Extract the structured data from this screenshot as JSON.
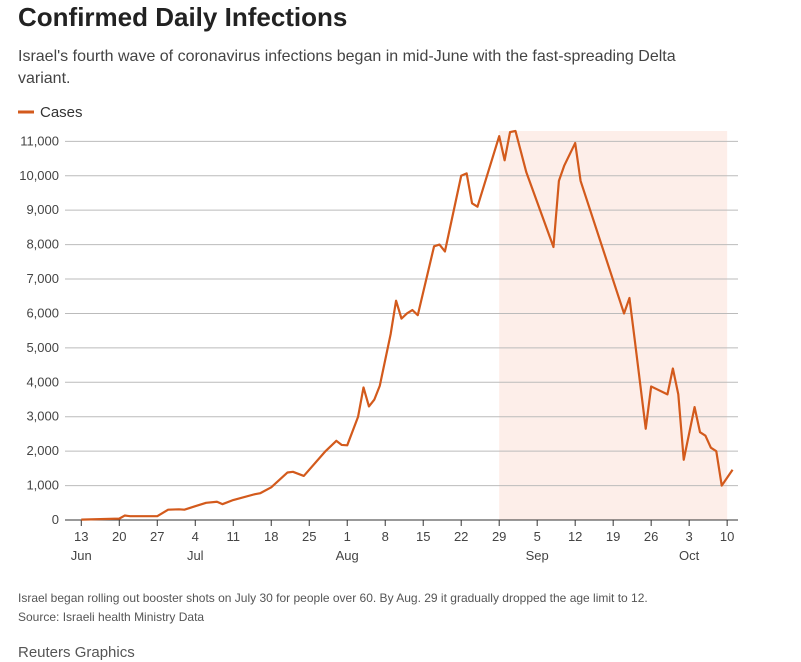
{
  "chart_data": {
    "type": "line",
    "title": "Confirmed Daily Infections",
    "subtitle": [
      "Israel's fourth wave of coronavirus infections began in mid-June with the fast-spreading Delta",
      "variant."
    ],
    "notes": [
      "Israel began rolling out booster shots on July 30 for people over 60. By Aug. 29 it gradually dropped the age limit to 12.",
      "Source: Israeli health Ministry Data"
    ],
    "credit": "Reuters Graphics",
    "legend": "top-left",
    "shade": {
      "from": "Aug 29",
      "to": "Oct 10",
      "color": "#fdeee9"
    },
    "xlim": [
      "Jun 10",
      "Oct 12"
    ],
    "xticks": [
      {
        "value": "Jun 13",
        "label": "13"
      },
      {
        "value": "Jun 20",
        "label": "20"
      },
      {
        "value": "Jun 27",
        "label": "27"
      },
      {
        "value": "Jul 4",
        "label": "4"
      },
      {
        "value": "Jul 11",
        "label": "11"
      },
      {
        "value": "Jul 18",
        "label": "18"
      },
      {
        "value": "Jul 25",
        "label": "25"
      },
      {
        "value": "Aug 1",
        "label": "1"
      },
      {
        "value": "Aug 8",
        "label": "8"
      },
      {
        "value": "Aug 15",
        "label": "15"
      },
      {
        "value": "Aug 22",
        "label": "22"
      },
      {
        "value": "Aug 29",
        "label": "29"
      },
      {
        "value": "Sep 5",
        "label": "5"
      },
      {
        "value": "Sep 12",
        "label": "12"
      },
      {
        "value": "Sep 19",
        "label": "19"
      },
      {
        "value": "Sep 26",
        "label": "26"
      },
      {
        "value": "Oct 3",
        "label": "3"
      },
      {
        "value": "Oct 10",
        "label": "10"
      }
    ],
    "month_labels": [
      {
        "value": "Jun 13",
        "label": "Jun"
      },
      {
        "value": "Jul 4",
        "label": "Jul"
      },
      {
        "value": "Aug 1",
        "label": "Aug"
      },
      {
        "value": "Sep 5",
        "label": "Sep"
      },
      {
        "value": "Oct 3",
        "label": "Oct"
      }
    ],
    "ylim": [
      0,
      11300
    ],
    "yticks": [
      0,
      {
        "value": 1000,
        "label": "1,000"
      },
      {
        "value": 2000,
        "label": "2,000"
      },
      {
        "value": 3000,
        "label": "3,000"
      },
      {
        "value": 4000,
        "label": "4,000"
      },
      {
        "value": 5000,
        "label": "5,000"
      },
      {
        "value": 6000,
        "label": "6,000"
      },
      {
        "value": 7000,
        "label": "7,000"
      },
      {
        "value": 8000,
        "label": "8,000"
      },
      {
        "value": 9000,
        "label": "9,000"
      },
      {
        "value": 10000,
        "label": "10,000"
      },
      {
        "value": 11000,
        "label": "11,000"
      }
    ],
    "grid": true,
    "x": [
      "Jun 13",
      "Jun 20",
      "Jun 21",
      "Jun 22",
      "Jun 27",
      "Jun 29",
      "Jul 1",
      "Jul 2",
      "Jul 4",
      "Jul 6",
      "Jul 8",
      "Jul 9",
      "Jul 11",
      "Jul 15",
      "Jul 16",
      "Jul 18",
      "Jul 21",
      "Jul 22",
      "Jul 24",
      "Jul 28",
      "Jul 30",
      "Jul 31",
      "Aug 1",
      "Aug 3",
      "Aug 4",
      "Aug 5",
      "Aug 6",
      "Aug 7",
      "Aug 9",
      "Aug 10",
      "Aug 11",
      "Aug 12",
      "Aug 13",
      "Aug 14",
      "Aug 17",
      "Aug 18",
      "Aug 19",
      "Aug 22",
      "Aug 23",
      "Aug 24",
      "Aug 25",
      "Aug 29",
      "Aug 30",
      "Aug 31",
      "Sep 1",
      "Sep 3",
      "Sep 8",
      "Sep 9",
      "Sep 10",
      "Sep 12",
      "Sep 13",
      "Sep 21",
      "Sep 22",
      "Sep 23",
      "Sep 25",
      "Sep 26",
      "Sep 29",
      "Sep 30",
      "Oct 1",
      "Oct 2",
      "Oct 4",
      "Oct 5",
      "Oct 6",
      "Oct 7",
      "Oct 8",
      "Oct 9",
      "Oct 11"
    ],
    "series": [
      {
        "name": "Cases",
        "color": "#d35a1c",
        "values": [
          10,
          40,
          130,
          110,
          110,
          300,
          310,
          300,
          400,
          500,
          530,
          460,
          580,
          750,
          780,
          950,
          1380,
          1400,
          1280,
          2000,
          2300,
          2180,
          2170,
          3000,
          3850,
          3300,
          3500,
          3900,
          5400,
          6370,
          5850,
          6000,
          6100,
          5950,
          7950,
          8000,
          7800,
          10000,
          10070,
          9200,
          9100,
          11150,
          10450,
          11270,
          11300,
          10100,
          7930,
          9850,
          10300,
          10950,
          9850,
          6000,
          6450,
          5200,
          2650,
          3880,
          3650,
          4400,
          3650,
          1750,
          3280,
          2550,
          2450,
          2100,
          2000,
          1000,
          1460
        ]
      }
    ]
  }
}
